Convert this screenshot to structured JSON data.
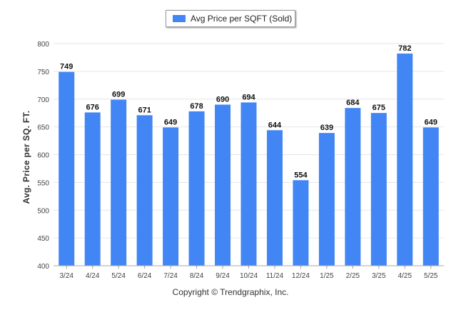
{
  "chart_data": {
    "type": "bar",
    "legend": {
      "label": "Avg Price per SQFT (Sold)",
      "position": "top-center"
    },
    "ylabel": "Avg. Price per SQ. FT.",
    "xlabel": "",
    "ylim": [
      400,
      800
    ],
    "yticks": [
      400,
      450,
      500,
      550,
      600,
      650,
      700,
      750,
      800
    ],
    "grid": true,
    "color": "#4285f4",
    "categories": [
      "3/24",
      "4/24",
      "5/24",
      "6/24",
      "7/24",
      "8/24",
      "9/24",
      "10/24",
      "11/24",
      "12/24",
      "1/25",
      "2/25",
      "3/25",
      "4/25",
      "5/25"
    ],
    "values": [
      749,
      676,
      699,
      671,
      649,
      678,
      690,
      694,
      644,
      554,
      639,
      684,
      675,
      782,
      649
    ]
  },
  "footer": "Copyright © Trendgraphix, Inc."
}
